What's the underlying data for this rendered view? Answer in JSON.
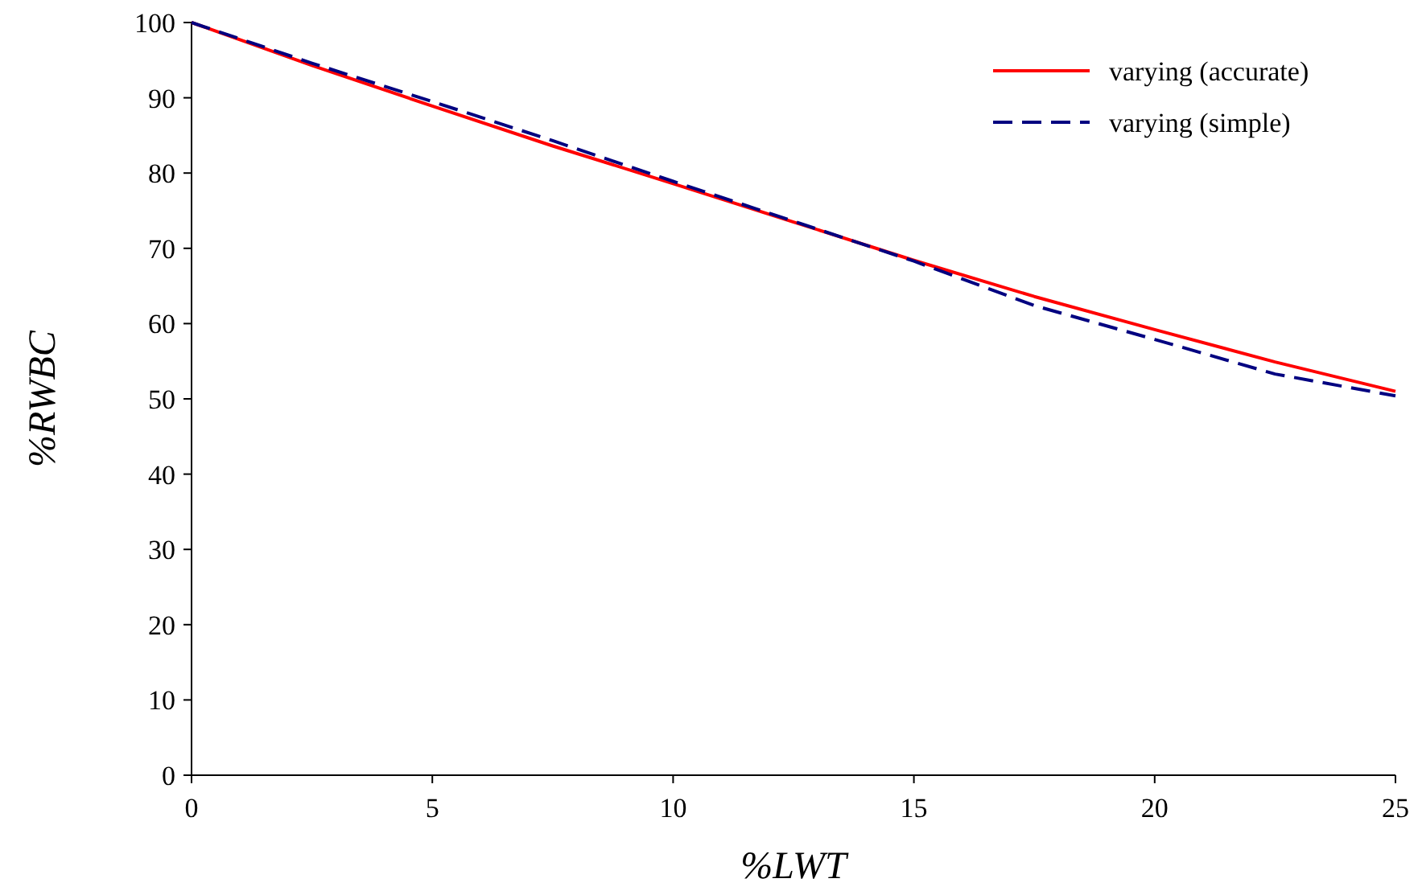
{
  "chart_data": {
    "type": "line",
    "xlabel": "%LWT",
    "ylabel": "%RWBC",
    "x": [
      0,
      2.5,
      5,
      7.5,
      10,
      12.5,
      15,
      17.5,
      20,
      22.5,
      25
    ],
    "series": [
      {
        "name": "varying (accurate)",
        "color": "#ff0000",
        "line_style": "solid",
        "values": [
          100,
          94.3,
          88.9,
          83.6,
          78.6,
          73.5,
          68.4,
          63.6,
          59.2,
          54.9,
          51
        ]
      },
      {
        "name": "varying (simple)",
        "color": "#000080",
        "line_style": "dashed",
        "values": [
          100,
          94.6,
          89.5,
          84.3,
          78.9,
          73.6,
          68.3,
          62.4,
          57.9,
          53.3,
          50.4
        ]
      }
    ],
    "xlim": [
      0,
      25
    ],
    "ylim": [
      0,
      100
    ],
    "xticks": [
      0,
      5,
      10,
      15,
      20,
      25
    ],
    "yticks": [
      0,
      10,
      20,
      30,
      40,
      50,
      60,
      70,
      80,
      90,
      100
    ],
    "grid": false,
    "legend": "top right",
    "marker": "none"
  }
}
